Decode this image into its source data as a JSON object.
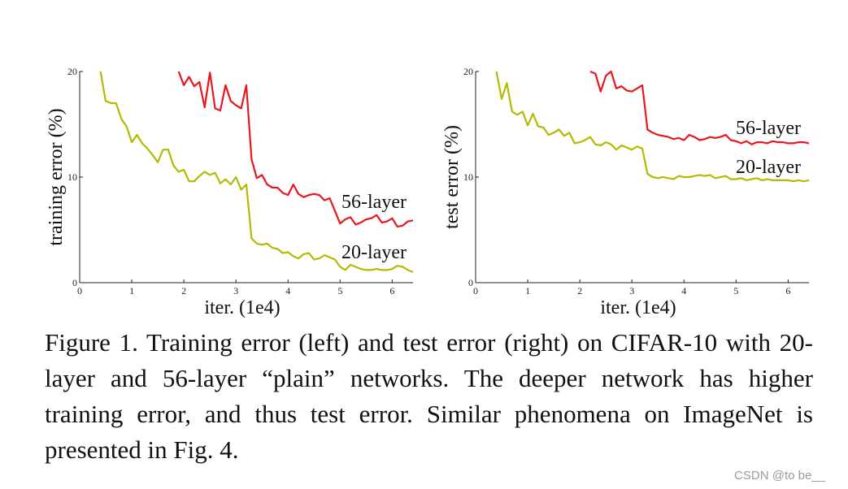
{
  "chart_data": [
    {
      "type": "line",
      "xlabel": "iter. (1e4)",
      "ylabel": "training error (%)",
      "xlim": [
        0,
        6.4
      ],
      "ylim": [
        0,
        20
      ],
      "xticks": [
        "0",
        "1",
        "2",
        "3",
        "4",
        "5",
        "6"
      ],
      "yticks": [
        "0",
        "10",
        "20"
      ],
      "grid": false,
      "series": [
        {
          "name": "56-layer",
          "color": "#e8171d",
          "x": [
            1.9,
            2.0,
            2.1,
            2.2,
            2.3,
            2.4,
            2.5,
            2.6,
            2.7,
            2.8,
            2.9,
            3.0,
            3.1,
            3.2,
            3.3,
            3.4,
            3.5,
            3.6,
            3.7,
            3.8,
            3.9,
            4.0,
            4.1,
            4.2,
            4.3,
            4.4,
            4.5,
            4.6,
            4.7,
            4.8,
            4.9,
            5.0,
            5.1,
            5.2,
            5.3,
            5.4,
            5.5,
            5.6,
            5.7,
            5.8,
            5.9,
            6.0,
            6.1,
            6.2,
            6.3,
            6.4
          ],
          "values": [
            20.0,
            18.7,
            19.5,
            18.6,
            19.0,
            16.6,
            19.9,
            16.5,
            16.3,
            18.7,
            17.2,
            16.8,
            16.5,
            18.7,
            11.7,
            9.9,
            10.2,
            9.3,
            9.0,
            9.0,
            8.5,
            8.3,
            9.3,
            8.4,
            8.1,
            8.3,
            8.4,
            8.3,
            7.8,
            8.0,
            6.8,
            5.6,
            6.0,
            6.2,
            5.5,
            5.7,
            6.0,
            6.1,
            6.4,
            5.7,
            5.8,
            6.1,
            5.3,
            5.4,
            5.8,
            5.9
          ]
        },
        {
          "name": "20-layer",
          "color": "#b3ba00",
          "x": [
            0.4,
            0.5,
            0.6,
            0.7,
            0.8,
            0.9,
            1.0,
            1.1,
            1.2,
            1.3,
            1.4,
            1.5,
            1.6,
            1.7,
            1.8,
            1.9,
            2.0,
            2.1,
            2.2,
            2.3,
            2.4,
            2.5,
            2.6,
            2.7,
            2.8,
            2.9,
            3.0,
            3.1,
            3.2,
            3.3,
            3.4,
            3.5,
            3.6,
            3.7,
            3.8,
            3.9,
            4.0,
            4.1,
            4.2,
            4.3,
            4.4,
            4.5,
            4.6,
            4.7,
            4.8,
            4.9,
            5.0,
            5.1,
            5.2,
            5.3,
            5.4,
            5.5,
            5.6,
            5.7,
            5.8,
            5.9,
            6.0,
            6.1,
            6.2,
            6.3,
            6.4
          ],
          "values": [
            20.0,
            17.2,
            17.0,
            17.0,
            15.5,
            14.8,
            13.3,
            14.0,
            13.2,
            12.7,
            12.1,
            11.4,
            12.6,
            12.6,
            11.1,
            10.5,
            10.7,
            9.6,
            9.6,
            10.1,
            10.5,
            10.2,
            10.4,
            9.4,
            9.8,
            9.3,
            10.0,
            8.8,
            9.3,
            4.2,
            3.7,
            3.6,
            3.7,
            3.3,
            3.2,
            2.8,
            2.9,
            2.5,
            2.3,
            2.7,
            2.8,
            2.2,
            2.3,
            2.6,
            2.4,
            2.2,
            1.5,
            1.2,
            1.7,
            1.5,
            1.3,
            1.2,
            1.2,
            1.3,
            1.2,
            1.2,
            1.3,
            1.6,
            1.5,
            1.2,
            1.0
          ]
        }
      ],
      "annotations": [
        "56-layer",
        "20-layer"
      ]
    },
    {
      "type": "line",
      "xlabel": "iter. (1e4)",
      "ylabel": "test error (%)",
      "xlim": [
        0,
        6.4
      ],
      "ylim": [
        0,
        20
      ],
      "xticks": [
        "0",
        "1",
        "2",
        "3",
        "4",
        "5",
        "6"
      ],
      "yticks": [
        "0",
        "10",
        "20"
      ],
      "grid": false,
      "series": [
        {
          "name": "56-layer",
          "color": "#e8171d",
          "x": [
            2.2,
            2.3,
            2.4,
            2.5,
            2.6,
            2.7,
            2.8,
            2.9,
            3.0,
            3.1,
            3.2,
            3.3,
            3.4,
            3.5,
            3.6,
            3.7,
            3.8,
            3.9,
            4.0,
            4.1,
            4.2,
            4.3,
            4.4,
            4.5,
            4.6,
            4.7,
            4.8,
            4.9,
            5.0,
            5.1,
            5.2,
            5.3,
            5.4,
            5.5,
            5.6,
            5.7,
            5.8,
            5.9,
            6.0,
            6.1,
            6.2,
            6.3,
            6.4
          ],
          "values": [
            20.0,
            19.8,
            18.1,
            19.6,
            20.0,
            18.4,
            18.6,
            18.2,
            18.1,
            18.4,
            18.7,
            14.5,
            14.2,
            14.0,
            13.9,
            13.8,
            13.6,
            13.7,
            13.5,
            14.0,
            13.8,
            13.5,
            13.6,
            13.8,
            13.7,
            13.8,
            14.0,
            13.5,
            13.4,
            13.2,
            13.4,
            13.1,
            13.3,
            13.3,
            13.2,
            13.4,
            13.3,
            13.3,
            13.2,
            13.2,
            13.3,
            13.3,
            13.2
          ]
        },
        {
          "name": "20-layer",
          "color": "#b3ba00",
          "x": [
            0.4,
            0.5,
            0.6,
            0.7,
            0.8,
            0.9,
            1.0,
            1.1,
            1.2,
            1.3,
            1.4,
            1.5,
            1.6,
            1.7,
            1.8,
            1.9,
            2.0,
            2.1,
            2.2,
            2.3,
            2.4,
            2.5,
            2.6,
            2.7,
            2.8,
            2.9,
            3.0,
            3.1,
            3.2,
            3.3,
            3.4,
            3.5,
            3.6,
            3.7,
            3.8,
            3.9,
            4.0,
            4.1,
            4.2,
            4.3,
            4.4,
            4.5,
            4.6,
            4.7,
            4.8,
            4.9,
            5.0,
            5.1,
            5.2,
            5.3,
            5.4,
            5.5,
            5.6,
            5.7,
            5.8,
            5.9,
            6.0,
            6.1,
            6.2,
            6.3,
            6.4
          ],
          "values": [
            20.0,
            17.4,
            18.9,
            16.2,
            15.9,
            16.2,
            14.9,
            16.0,
            14.8,
            14.7,
            14.0,
            14.2,
            14.5,
            13.9,
            14.2,
            13.2,
            13.3,
            13.5,
            13.8,
            13.1,
            13.0,
            13.3,
            13.1,
            12.6,
            13.0,
            12.8,
            12.6,
            12.9,
            12.7,
            10.3,
            10.0,
            9.9,
            10.0,
            9.9,
            9.8,
            10.1,
            10.0,
            10.0,
            10.1,
            10.2,
            10.1,
            10.2,
            9.9,
            10.0,
            10.1,
            9.8,
            9.8,
            9.9,
            9.7,
            9.8,
            9.9,
            9.7,
            9.8,
            9.7,
            9.7,
            9.7,
            9.7,
            9.6,
            9.7,
            9.6,
            9.7
          ]
        }
      ],
      "annotations": [
        "56-layer",
        "20-layer"
      ]
    }
  ],
  "caption": "Figure 1. Training error (left) and test error (right) on CIFAR-10 with 20-layer and 56-layer “plain” networks. The deeper network has higher training error, and thus test error. Similar phenomena on ImageNet is presented in Fig. 4.",
  "watermark": "CSDN @to be__"
}
